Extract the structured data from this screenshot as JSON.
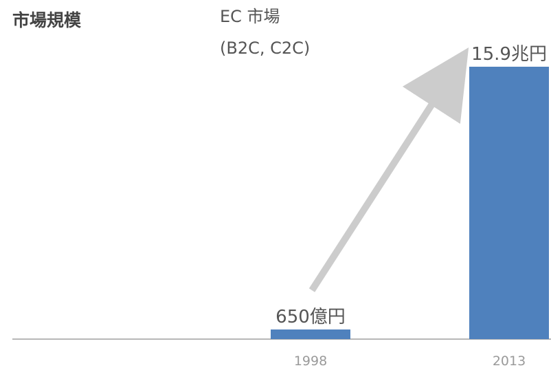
{
  "chart_data": {
    "type": "bar",
    "title": "",
    "ylabel": "市場規模",
    "series_title_lines": [
      "EC 市場",
      "(B2C, C2C)"
    ],
    "categories": [
      "1998",
      "2013"
    ],
    "values": [
      0.065,
      15.9
    ],
    "value_unit": "兆円",
    "data_labels": [
      "650億円",
      "15.9兆円"
    ],
    "ylim": [
      0,
      15.9
    ],
    "grid": false,
    "legend": "none",
    "trend_arrow": true,
    "colors": {
      "bar": "#4f81bd",
      "axis": "#b7b7b7",
      "arrow": "#cccccc"
    }
  }
}
